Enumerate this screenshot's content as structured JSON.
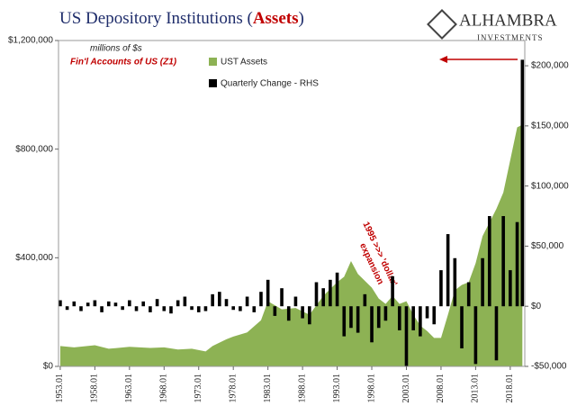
{
  "chart_data": {
    "type": "area_bar",
    "title_parts": [
      "US Depository Institutions (",
      "Assets",
      ")"
    ],
    "logo": [
      "ALHAMBRA",
      "INVESTMENTS"
    ],
    "annotations": [
      "millions of $s",
      "Fin'l Accounts of US (Z1)",
      "1995 >>> 'dollar'",
      "expansion"
    ],
    "xlim": [
      1952.75,
      2020.1
    ],
    "xticks": [
      {
        "value": 1953,
        "label": "1953.01"
      },
      {
        "value": 1958,
        "label": "1958.01"
      },
      {
        "value": 1963,
        "label": "1963.01"
      },
      {
        "value": 1968,
        "label": "1968.01"
      },
      {
        "value": 1973,
        "label": "1973.01"
      },
      {
        "value": 1978,
        "label": "1978.01"
      },
      {
        "value": 1983,
        "label": "1983.01"
      },
      {
        "value": 1988,
        "label": "1988.01"
      },
      {
        "value": 1993,
        "label": "1993.01"
      },
      {
        "value": 1998,
        "label": "1998.01"
      },
      {
        "value": 2003,
        "label": "2003.01"
      },
      {
        "value": 2008,
        "label": "2008.01"
      },
      {
        "value": 2013,
        "label": "2013.01"
      },
      {
        "value": 2018,
        "label": "2018.01"
      }
    ],
    "ylim": [
      0,
      1200000
    ],
    "yticks": [
      {
        "value": 0,
        "label": "$0"
      },
      {
        "value": 400000,
        "label": "$400,000"
      },
      {
        "value": 800000,
        "label": "$800,000"
      },
      {
        "value": 1200000,
        "label": "$1,200,000"
      }
    ],
    "y2lim": [
      -50000,
      221000
    ],
    "y2ticks": [
      {
        "value": -50000,
        "label": "-$50,000"
      },
      {
        "value": 0,
        "label": "$0"
      },
      {
        "value": 50000,
        "label": "$50,000"
      },
      {
        "value": 100000,
        "label": "$100,000"
      },
      {
        "value": 150000,
        "label": "$150,000"
      },
      {
        "value": 200000,
        "label": "$200,000"
      }
    ],
    "series": [
      {
        "name": "UST Assets",
        "color": "#8db254",
        "kind": "area",
        "x": [
          1953,
          1955,
          1958,
          1960,
          1963,
          1966,
          1968,
          1970,
          1972,
          1974,
          1975,
          1977,
          1978,
          1980,
          1982,
          1983,
          1985,
          1987,
          1989,
          1991,
          1993,
          1994,
          1995,
          1996,
          1998,
          1999,
          2000,
          2001,
          2002,
          2003,
          2004,
          2005,
          2006,
          2007,
          2008,
          2009,
          2010,
          2011,
          2012,
          2013,
          2014,
          2015,
          2016,
          2017,
          2018,
          2019,
          2019.75
        ],
        "values": [
          75000,
          70000,
          78000,
          65000,
          72000,
          68000,
          70000,
          62000,
          65000,
          55000,
          75000,
          100000,
          110000,
          125000,
          170000,
          240000,
          210000,
          215000,
          190000,
          260000,
          310000,
          330000,
          388000,
          340000,
          290000,
          250000,
          230000,
          260000,
          230000,
          240000,
          190000,
          150000,
          130000,
          105000,
          105000,
          190000,
          280000,
          300000,
          310000,
          380000,
          480000,
          530000,
          580000,
          640000,
          760000,
          880000,
          890000
        ]
      },
      {
        "name": "Quarterly Change - RHS",
        "color": "#000000",
        "kind": "bar",
        "axis": "y2",
        "x": [
          1953,
          1954,
          1955,
          1956,
          1957,
          1958,
          1959,
          1960,
          1961,
          1962,
          1963,
          1964,
          1965,
          1966,
          1967,
          1968,
          1969,
          1970,
          1971,
          1972,
          1973,
          1974,
          1975,
          1976,
          1977,
          1978,
          1979,
          1980,
          1981,
          1982,
          1983,
          1984,
          1985,
          1986,
          1987,
          1988,
          1989,
          1990,
          1991,
          1992,
          1993,
          1994,
          1995,
          1996,
          1997,
          1998,
          1999,
          2000,
          2001,
          2002,
          2003,
          2004,
          2005,
          2006,
          2007,
          2008,
          2009,
          2010,
          2011,
          2012,
          2013,
          2014,
          2015,
          2016,
          2017,
          2018,
          2019,
          2019.75
        ],
        "values": [
          5000,
          -3000,
          4000,
          -4000,
          3000,
          5000,
          -5000,
          4000,
          3000,
          -3000,
          5000,
          -4000,
          4000,
          -5000,
          6000,
          -4000,
          -6000,
          5000,
          8000,
          -3000,
          -5000,
          -4000,
          10000,
          12000,
          6000,
          -3000,
          -4000,
          8000,
          -5000,
          12000,
          22000,
          -8000,
          15000,
          -12000,
          8000,
          -10000,
          -15000,
          20000,
          15000,
          22000,
          28000,
          -25000,
          -18000,
          -22000,
          10000,
          -30000,
          -18000,
          -12000,
          25000,
          -20000,
          -50000,
          -20000,
          -25000,
          -10000,
          -15000,
          30000,
          60000,
          40000,
          -35000,
          20000,
          -48000,
          40000,
          75000,
          -45000,
          75000,
          30000,
          70000,
          205000
        ]
      }
    ]
  }
}
